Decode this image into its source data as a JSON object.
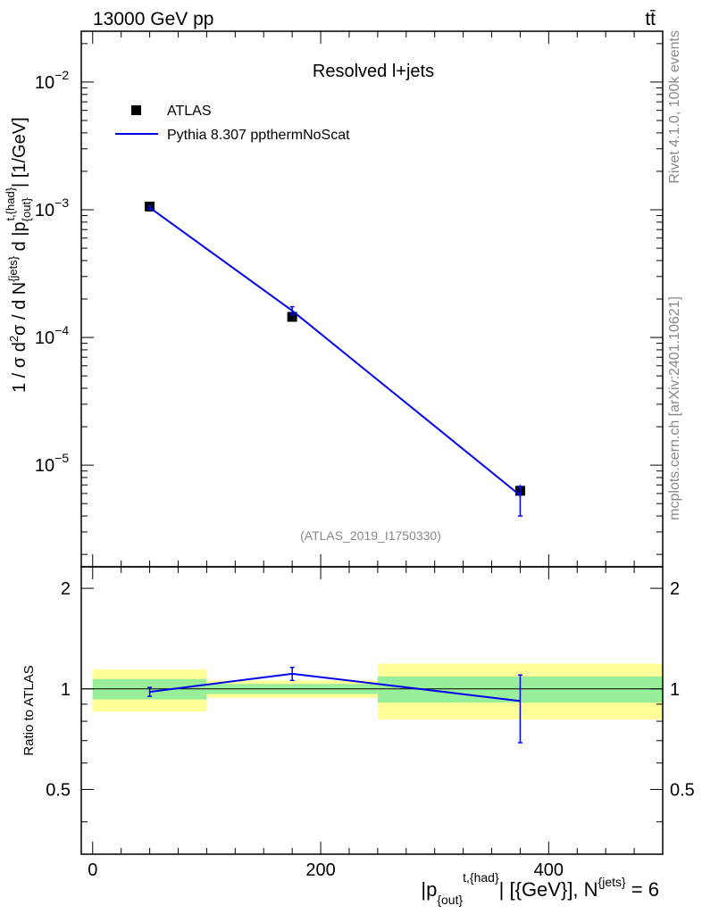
{
  "header": {
    "beam": "13000 GeV pp",
    "process": "tt̄"
  },
  "side_labels": {
    "rivet": "Rivet 4.1.0,  100k events",
    "source": "mcplots.cern.ch [arXiv:2401.10621]"
  },
  "chart_data": {
    "type": "line",
    "title": "Resolved l+jets",
    "analysis_id": "(ATLAS_2019_I1750330)",
    "xlabel": "|p_{out}^{t,{had}}| [{GeV}], N^{jets} = 6",
    "xlabel_parts": {
      "main": "|p",
      "sub": "{out}",
      "sup": "t,{had}",
      "mid": "| [{GeV}], N",
      "sup2": "{jets}",
      "tail": " = 6"
    },
    "ylabel": "1 / σ d²σ / d N^{jets} d |p_{out}^{t,{had}}| [1/GeV]",
    "ylabel_parts": {
      "a": "1 / σ d",
      "b": "2",
      "c": "σ / d N",
      "d": "{jets}",
      "e": " d |p",
      "f": "{out}",
      "g": "t,{had}",
      "h": "| [1/GeV]"
    },
    "xlim": [
      -10,
      500
    ],
    "ylim_main": [
      1.6e-06,
      0.025
    ],
    "ylog": true,
    "x_ticks": [
      0,
      200,
      400
    ],
    "x_tick_labels": [
      "0",
      "200",
      "400"
    ],
    "y_ticks_main": [
      1e-05,
      0.0001,
      0.001,
      0.01
    ],
    "y_tick_labels_main": [
      {
        "base": "10",
        "exp": "−5"
      },
      {
        "base": "10",
        "exp": "−4"
      },
      {
        "base": "10",
        "exp": "−3"
      },
      {
        "base": "10",
        "exp": "−2"
      }
    ],
    "legend": {
      "position": "top-left",
      "entries": [
        "ATLAS",
        "Pythia 8.307 ppthermNoScat"
      ]
    },
    "series": [
      {
        "name": "ATLAS",
        "kind": "data",
        "color": "#000000",
        "x": [
          50,
          175,
          375
        ],
        "x_low": [
          0,
          100,
          250
        ],
        "x_high": [
          100,
          250,
          500
        ],
        "y": [
          0.00106,
          0.000145,
          6.3e-06
        ],
        "y_err_low": [
          4e-05,
          9e-06,
          7e-07
        ],
        "y_err_high": [
          4e-05,
          9e-06,
          7e-07
        ]
      },
      {
        "name": "Pythia 8.307 ppthermNoScat",
        "kind": "mc",
        "color": "#0000ee",
        "x": [
          50,
          175,
          375
        ],
        "y": [
          0.00104,
          0.000162,
          5.8e-06
        ],
        "y_err_low": [
          3e-05,
          1.2e-05,
          1.8e-06
        ],
        "y_err_high": [
          3e-05,
          1.2e-05,
          1e-06
        ]
      }
    ],
    "ratio": {
      "ylabel": "Ratio to ATLAS",
      "ylim": [
        0.32,
        2.32
      ],
      "y_ticks": [
        0.5,
        1,
        2
      ],
      "y_tick_labels": [
        "0.5",
        "1",
        "2"
      ],
      "bands": [
        {
          "x_low": 0,
          "x_high": 100,
          "inner": [
            0.93,
            1.07
          ],
          "outer": [
            0.855,
            1.145
          ]
        },
        {
          "x_low": 100,
          "x_high": 250,
          "inner": [
            0.965,
            1.035
          ],
          "outer": [
            0.94,
            1.06
          ]
        },
        {
          "x_low": 250,
          "x_high": 500,
          "inner": [
            0.91,
            1.09
          ],
          "outer": [
            0.81,
            1.19
          ]
        }
      ],
      "mc_ratio": {
        "x": [
          50,
          175,
          375
        ],
        "y": [
          0.98,
          1.11,
          0.92
        ],
        "y_err_low": [
          0.03,
          0.05,
          0.23
        ],
        "y_err_high": [
          0.03,
          0.05,
          0.18
        ]
      },
      "colors": {
        "inner": "#99ee99",
        "outer": "#ffff99"
      }
    }
  }
}
